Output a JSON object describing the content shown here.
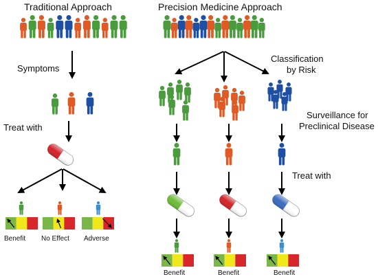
{
  "headings": {
    "traditional": "Traditional Approach",
    "precision": "Precision Medicine Approach"
  },
  "labels": {
    "symptoms": "Symptoms",
    "treat_with_left": "Treat with",
    "classification": "Classification",
    "by_risk": "by Risk",
    "surveillance_1": "Surveillance for",
    "surveillance_2": "Preclinical Disease",
    "treat_with_right": "Treat with"
  },
  "outcomes": {
    "benefit": "Benefit",
    "no_effect": "No Effect",
    "adverse": "Adverse"
  },
  "colors": {
    "green": "#4a9a3e",
    "orange": "#e05a25",
    "blue": "#1e4fa3",
    "light_blue": "#3a8fd0",
    "scale_green": "#7ab648",
    "scale_yellow": "#f0e81a",
    "scale_red": "#d9262b",
    "pill_red": "#d2242a",
    "pill_green": "#6fbb3a",
    "pill_blue": "#3a6cc0"
  }
}
